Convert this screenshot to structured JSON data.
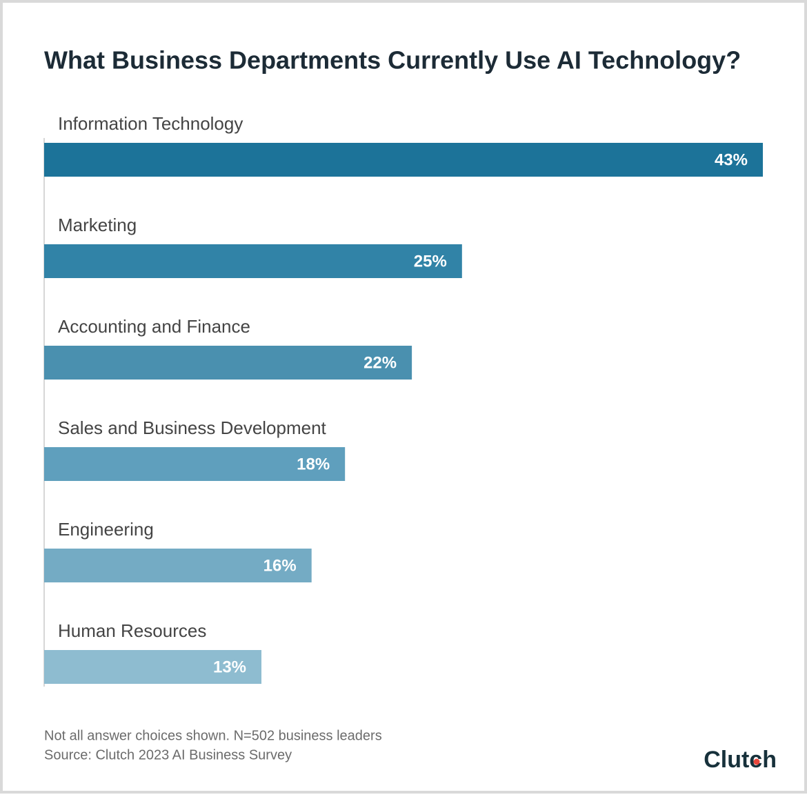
{
  "chart_data": {
    "type": "hbar",
    "title": "What Business Departments Currently Use AI Technology?",
    "categories": [
      "Information Technology",
      "Marketing",
      "Accounting and Finance",
      "Sales and Business Development",
      "Engineering",
      "Human Resources"
    ],
    "values": [
      43,
      25,
      22,
      18,
      16,
      13
    ],
    "value_labels": [
      "43%",
      "25%",
      "22%",
      "18%",
      "16%",
      "13%"
    ],
    "colors": [
      "#1c7399",
      "#3183a7",
      "#4a90af",
      "#5f9fbd",
      "#74abc4",
      "#8ebcd0"
    ],
    "notes": [
      "Not all answer choices shown. N=502 business leaders",
      "Source: Clutch 2023 AI Business Survey"
    ],
    "brand": "Clutch"
  }
}
